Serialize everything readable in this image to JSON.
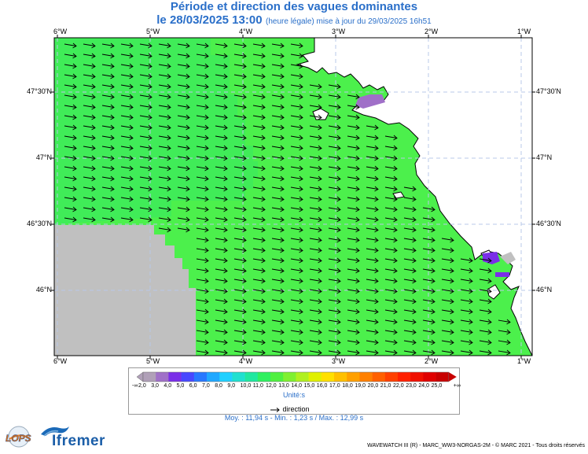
{
  "title": {
    "line1": "Période et direction des vagues dominantes",
    "date": "le 28/03/2025 13:00",
    "note": "(heure légale) mise à jour du 29/03/2025 16h51"
  },
  "axes": {
    "lon_labels": [
      "6°W",
      "5°W",
      "4°W",
      "3°W",
      "2°W",
      "1°W"
    ],
    "lat_labels": [
      "47°30'N",
      "47°N",
      "46°30'N",
      "46°N"
    ],
    "lon_range": [
      -6.05,
      -0.9
    ],
    "lat_range": [
      45.55,
      47.88
    ]
  },
  "legend": {
    "values": [
      "-∞",
      "2,0",
      "3,0",
      "4,0",
      "5,0",
      "6,0",
      "7,0",
      "8,0",
      "9,0",
      "10,0",
      "11,0",
      "12,0",
      "13,0",
      "14,0",
      "15,0",
      "16,0",
      "17,0",
      "18,0",
      "19,0",
      "20,0",
      "21,0",
      "22,0",
      "23,0",
      "24,0",
      "25,0",
      "+∞"
    ],
    "colors": [
      "#b0a0b8",
      "#a070c8",
      "#7a2fe8",
      "#4848ff",
      "#2878ff",
      "#20a8ff",
      "#20d0ff",
      "#20e0d0",
      "#20e8a0",
      "#30f060",
      "#50f040",
      "#80f030",
      "#b0f020",
      "#e0f000",
      "#ffe000",
      "#ffc000",
      "#ffa000",
      "#ff8000",
      "#ff6000",
      "#ff4000",
      "#ff2000",
      "#f01000",
      "#e00000",
      "#c80000"
    ],
    "unit": "Unité:s",
    "direction_label": "direction"
  },
  "stats": {
    "text": "Moy. : 11,94 s   -   Min. : 1,23 s / Max. : 12,99 s"
  },
  "footer": "WAVEWATCH III (R) - MARC_WW3-NORGAS-2M - © MARC 2021 - Tous droits réservés",
  "logos": {
    "lops": "LOPS",
    "ifremer": "Ifremer"
  },
  "map_style": {
    "sea_color": "#4cf04c",
    "offshore_color": "#40ec58",
    "nodata_color": "#c0c0c0",
    "land_color": "#ffffff",
    "low_period_color": "#a070c8",
    "very_low_period_color": "#7a2fe8",
    "arrow_color": "#000000",
    "arrow_direction": "east-southeast"
  }
}
